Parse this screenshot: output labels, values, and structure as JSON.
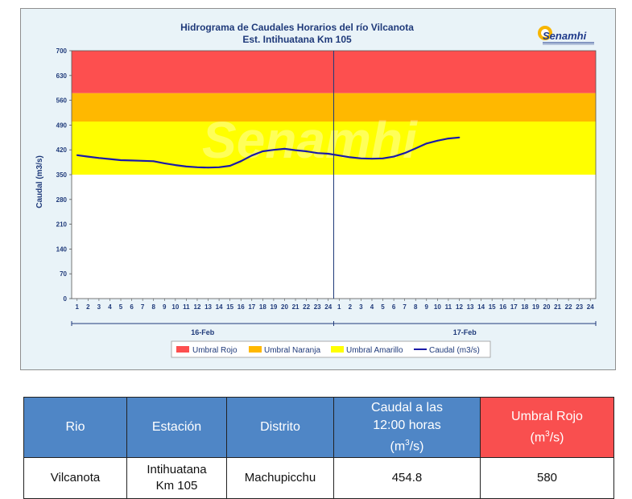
{
  "chart_data": {
    "type": "line",
    "title": "Hidrograma de Caudales Horarios del río Vilcanota",
    "subtitle": "Est. Intihuatana Km 105",
    "logo_text": "Senamhi",
    "watermark_text": "Senamhi",
    "ylabel": "Caudal  (m3/s)",
    "ylim": [
      0,
      700
    ],
    "yticks": [
      0,
      70,
      140,
      210,
      280,
      350,
      420,
      490,
      560,
      630,
      700
    ],
    "x_hour_labels": [
      "1",
      "2",
      "3",
      "4",
      "5",
      "6",
      "7",
      "8",
      "9",
      "10",
      "11",
      "12",
      "13",
      "14",
      "15",
      "16",
      "17",
      "18",
      "19",
      "20",
      "21",
      "22",
      "23",
      "24"
    ],
    "day_labels": [
      "16-Feb",
      "17-Feb"
    ],
    "thresholds": [
      {
        "name": "Umbral Rojo",
        "from": 580,
        "to": 700,
        "color": "#fd4f4f"
      },
      {
        "name": "Umbral Naranja",
        "from": 500,
        "to": 580,
        "color": "#ffb800"
      },
      {
        "name": "Umbral Amarillo",
        "from": 350,
        "to": 500,
        "color": "#ffff00"
      }
    ],
    "series": [
      {
        "name": "Caudal (m3/s)",
        "color": "#1a1aa8",
        "day1": [
          405,
          401,
          397,
          394,
          391,
          390,
          389,
          388,
          382,
          377,
          373,
          371,
          370,
          371,
          375,
          388,
          404,
          416,
          420,
          423,
          419,
          416,
          411,
          409
        ],
        "day2": [
          404,
          399,
          396,
          395,
          396,
          401,
          411,
          424,
          438,
          446,
          452,
          455
        ]
      }
    ],
    "legend": [
      "Umbral Rojo",
      "Umbral Naranja",
      "Umbral Amarillo",
      "Caudal (m3/s)"
    ],
    "legend_position": "bottom",
    "grid": false
  },
  "table": {
    "headers": {
      "rio": "Rio",
      "estacion": "Estación",
      "distrito": "Distrito",
      "caudal_line1": "Caudal a las",
      "caudal_line2": "12:00 horas",
      "caudal_unit_pre": "(m",
      "caudal_unit_sup": "3",
      "caudal_unit_post": "/s)",
      "umbral_line1": "Umbral Rojo",
      "umbral_unit_pre": "(m",
      "umbral_unit_sup": "3",
      "umbral_unit_post": "/s)"
    },
    "row": {
      "rio": "Vilcanota",
      "estacion_line1": "Intihuatana",
      "estacion_line2": "Km 105",
      "distrito": "Machupicchu",
      "caudal": "454.8",
      "umbral": "580"
    }
  }
}
